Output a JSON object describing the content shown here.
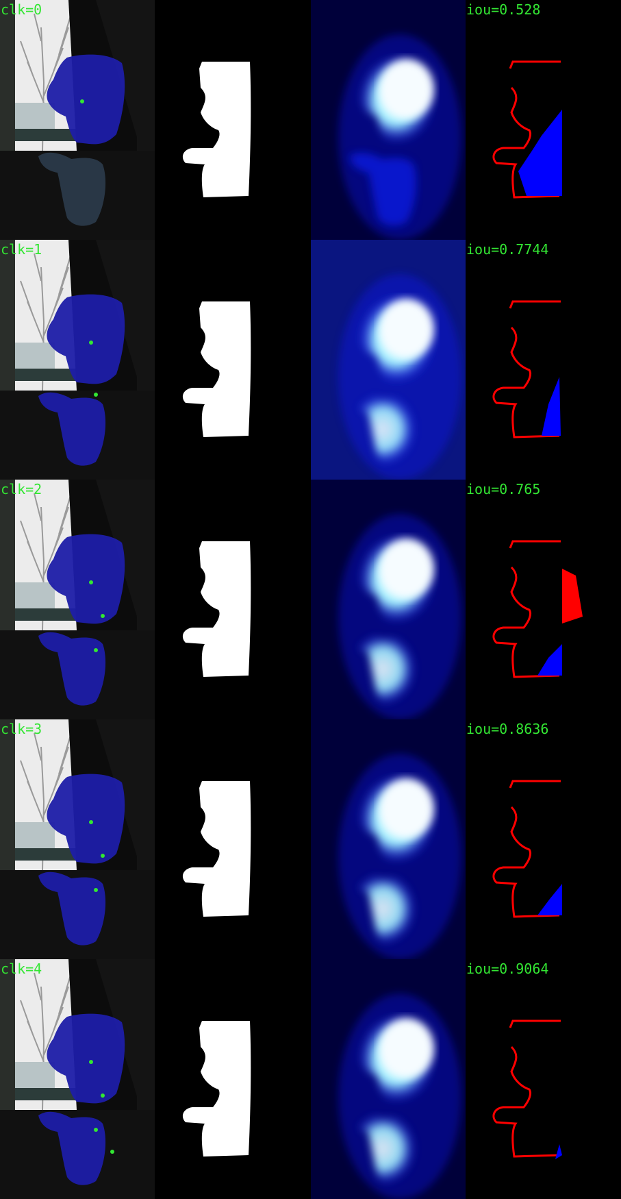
{
  "colors": {
    "label": "#33e633",
    "overlay": "#1e1ea8",
    "click_point": "#33e633",
    "error_fp": "#0000ff",
    "error_fn": "#ff0000",
    "mask": "#ffffff",
    "heat": "#0a12ff"
  },
  "rows": [
    {
      "clk_label": "clk=0",
      "iou_label": "iou=0.528",
      "clicks": [
        [
          120,
          148
        ]
      ]
    },
    {
      "clk_label": "clk=1",
      "iou_label": "iou=0.7744",
      "clicks": [
        [
          133,
          150
        ],
        [
          140,
          226
        ]
      ]
    },
    {
      "clk_label": "clk=2",
      "iou_label": "iou=0.765",
      "clicks": [
        [
          133,
          150
        ],
        [
          150,
          199
        ],
        [
          140,
          249
        ]
      ]
    },
    {
      "clk_label": "clk=3",
      "iou_label": "iou=0.8636",
      "clicks": [
        [
          133,
          150
        ],
        [
          150,
          199
        ],
        [
          140,
          249
        ]
      ]
    },
    {
      "clk_label": "clk=4",
      "iou_label": "iou=0.9064",
      "clicks": [
        [
          133,
          150
        ],
        [
          150,
          199
        ],
        [
          140,
          249
        ],
        [
          164,
          281
        ]
      ]
    }
  ]
}
